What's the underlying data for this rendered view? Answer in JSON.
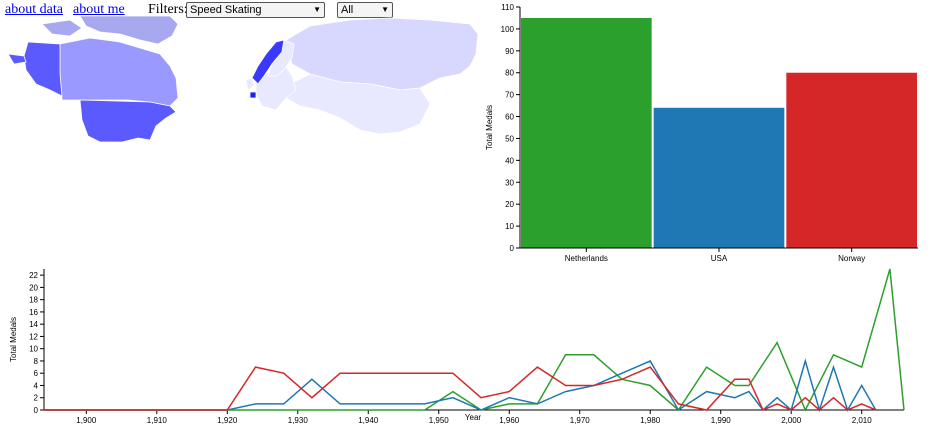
{
  "nav": {
    "about_data": "about data",
    "about_me": "about me"
  },
  "filters": {
    "label": "Filters:",
    "sport_value": "Speed Skating",
    "country_value": "All"
  },
  "map_colors": {
    "usa": "#5a5aff",
    "alaska": "#5a5aff",
    "canada": "#9999ff",
    "greenland": "#a8a8f0",
    "norway": "#3a3aff",
    "netherlands": "#2020ee",
    "russia": "#d8d8ff",
    "other": "#e8e8ff"
  },
  "bar_chart": {
    "chart_data": {
      "type": "bar",
      "categories": [
        "Netherlands",
        "USA",
        "Norway"
      ],
      "values": [
        105,
        64,
        80
      ],
      "colors": [
        "#2ca02c",
        "#1f77b4",
        "#d62728"
      ],
      "ylabel": "Total Medals",
      "ylim": [
        0,
        110
      ],
      "yticks": [
        0,
        10,
        20,
        30,
        40,
        50,
        60,
        70,
        80,
        90,
        100,
        110
      ]
    }
  },
  "line_chart": {
    "chart_data": {
      "type": "line",
      "xlabel": "Year",
      "ylabel": "Total Medals",
      "xlim": [
        1894,
        1916
      ],
      "ylim": [
        0,
        23
      ],
      "xticks": [
        1900,
        1910,
        1920,
        1930,
        1940,
        1950,
        1960,
        1970,
        1980,
        1990,
        2000,
        2010
      ],
      "xtick_labels": [
        "1,900",
        "1,910",
        "1,920",
        "1,930",
        "1,940",
        "1,950",
        "1,960",
        "1,970",
        "1,980",
        "1,990",
        "2,000",
        "2,010"
      ],
      "yticks": [
        0,
        2,
        4,
        6,
        8,
        10,
        12,
        14,
        16,
        18,
        20,
        22
      ],
      "series": [
        {
          "color": "#2ca02c",
          "x": [
            1894,
            1920,
            1924,
            1928,
            1932,
            1936,
            1948,
            1952,
            1956,
            1960,
            1964,
            1968,
            1972,
            1976,
            1980,
            1984,
            1988,
            1992,
            1994,
            1998,
            2002,
            2006,
            2010,
            2014,
            2016
          ],
          "y": [
            0,
            0,
            0,
            0,
            0,
            0,
            0,
            3,
            0,
            1,
            1,
            9,
            9,
            5,
            4,
            0,
            7,
            4,
            4,
            11,
            0,
            9,
            7,
            23,
            0
          ]
        },
        {
          "color": "#1f77b4",
          "x": [
            1894,
            1920,
            1924,
            1928,
            1932,
            1936,
            1948,
            1952,
            1956,
            1960,
            1964,
            1968,
            1972,
            1976,
            1980,
            1984,
            1988,
            1992,
            1994,
            1996,
            1998,
            2000,
            2002,
            2004,
            2006,
            2008,
            2010,
            2012
          ],
          "y": [
            0,
            0,
            1,
            1,
            5,
            1,
            1,
            2,
            0,
            2,
            1,
            3,
            4,
            6,
            8,
            0,
            3,
            2,
            3,
            0,
            2,
            0,
            8,
            0,
            7,
            0,
            4,
            0
          ]
        },
        {
          "color": "#d62728",
          "x": [
            1894,
            1920,
            1924,
            1928,
            1932,
            1936,
            1948,
            1952,
            1956,
            1960,
            1964,
            1968,
            1972,
            1976,
            1980,
            1984,
            1988,
            1992,
            1994,
            1996,
            1998,
            2000,
            2002,
            2004,
            2006,
            2008,
            2010,
            2012
          ],
          "y": [
            0,
            0,
            7,
            6,
            2,
            6,
            6,
            6,
            2,
            3,
            7,
            4,
            4,
            5,
            7,
            1,
            0,
            5,
            5,
            0,
            1,
            0,
            2,
            0,
            2,
            0,
            1,
            0
          ]
        }
      ]
    }
  }
}
